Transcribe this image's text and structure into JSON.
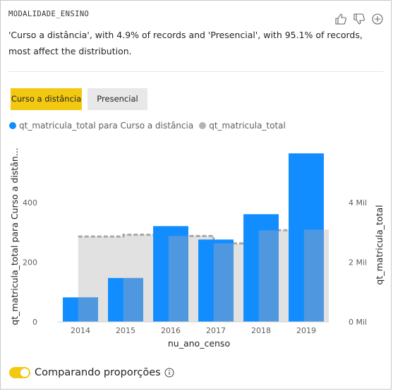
{
  "card": {
    "title": "MODALIDADE_ENSINO",
    "summary": "'Curso a distância', with 4.9% of records and 'Presencial', with 95.1% of records, most affect the distribution."
  },
  "filters": [
    {
      "label": "Curso a distância",
      "selected": true
    },
    {
      "label": "Presencial",
      "selected": false
    }
  ],
  "toggle": {
    "label": "Comparando proporções",
    "on": true
  },
  "icons": [
    "thumbs-up-icon",
    "thumbs-down-icon",
    "plus-circle-icon",
    "info-icon"
  ],
  "colors": {
    "accent": "#f2c811",
    "series_blue": "#118dff",
    "overlap_blue": "#4f98e0",
    "total_gray": "#e1e1e1",
    "dashed": "#a8a8a8"
  },
  "chart_data": {
    "type": "bar",
    "categories": [
      "2014",
      "2015",
      "2016",
      "2017",
      "2018",
      "2019"
    ],
    "xlabel": "nu_ano_censo",
    "ylabel_left": "qt_matricula_total para Curso a distân...",
    "ylabel_right": "qt_matricula_total",
    "ylim_left": [
      0,
      600
    ],
    "ylim_right": [
      0,
      6000
    ],
    "yticks_left": [
      "0",
      "200",
      "400"
    ],
    "yticks_right": [
      "0 Mil",
      "2 Mil",
      "4 Mil"
    ],
    "legend": [
      {
        "name": "qt_matricula_total para Curso a distância",
        "color": "#118dff"
      },
      {
        "name": "qt_matricula_total",
        "color": "#b3b3b3"
      }
    ],
    "series": [
      {
        "name": "qt_matricula_total para Curso a distância",
        "values": [
          82,
          147,
          321,
          276,
          361,
          565
        ]
      },
      {
        "name": "qt_matricula_total",
        "values": [
          2860,
          2920,
          2880,
          2630,
          3070,
          3090
        ]
      }
    ]
  }
}
